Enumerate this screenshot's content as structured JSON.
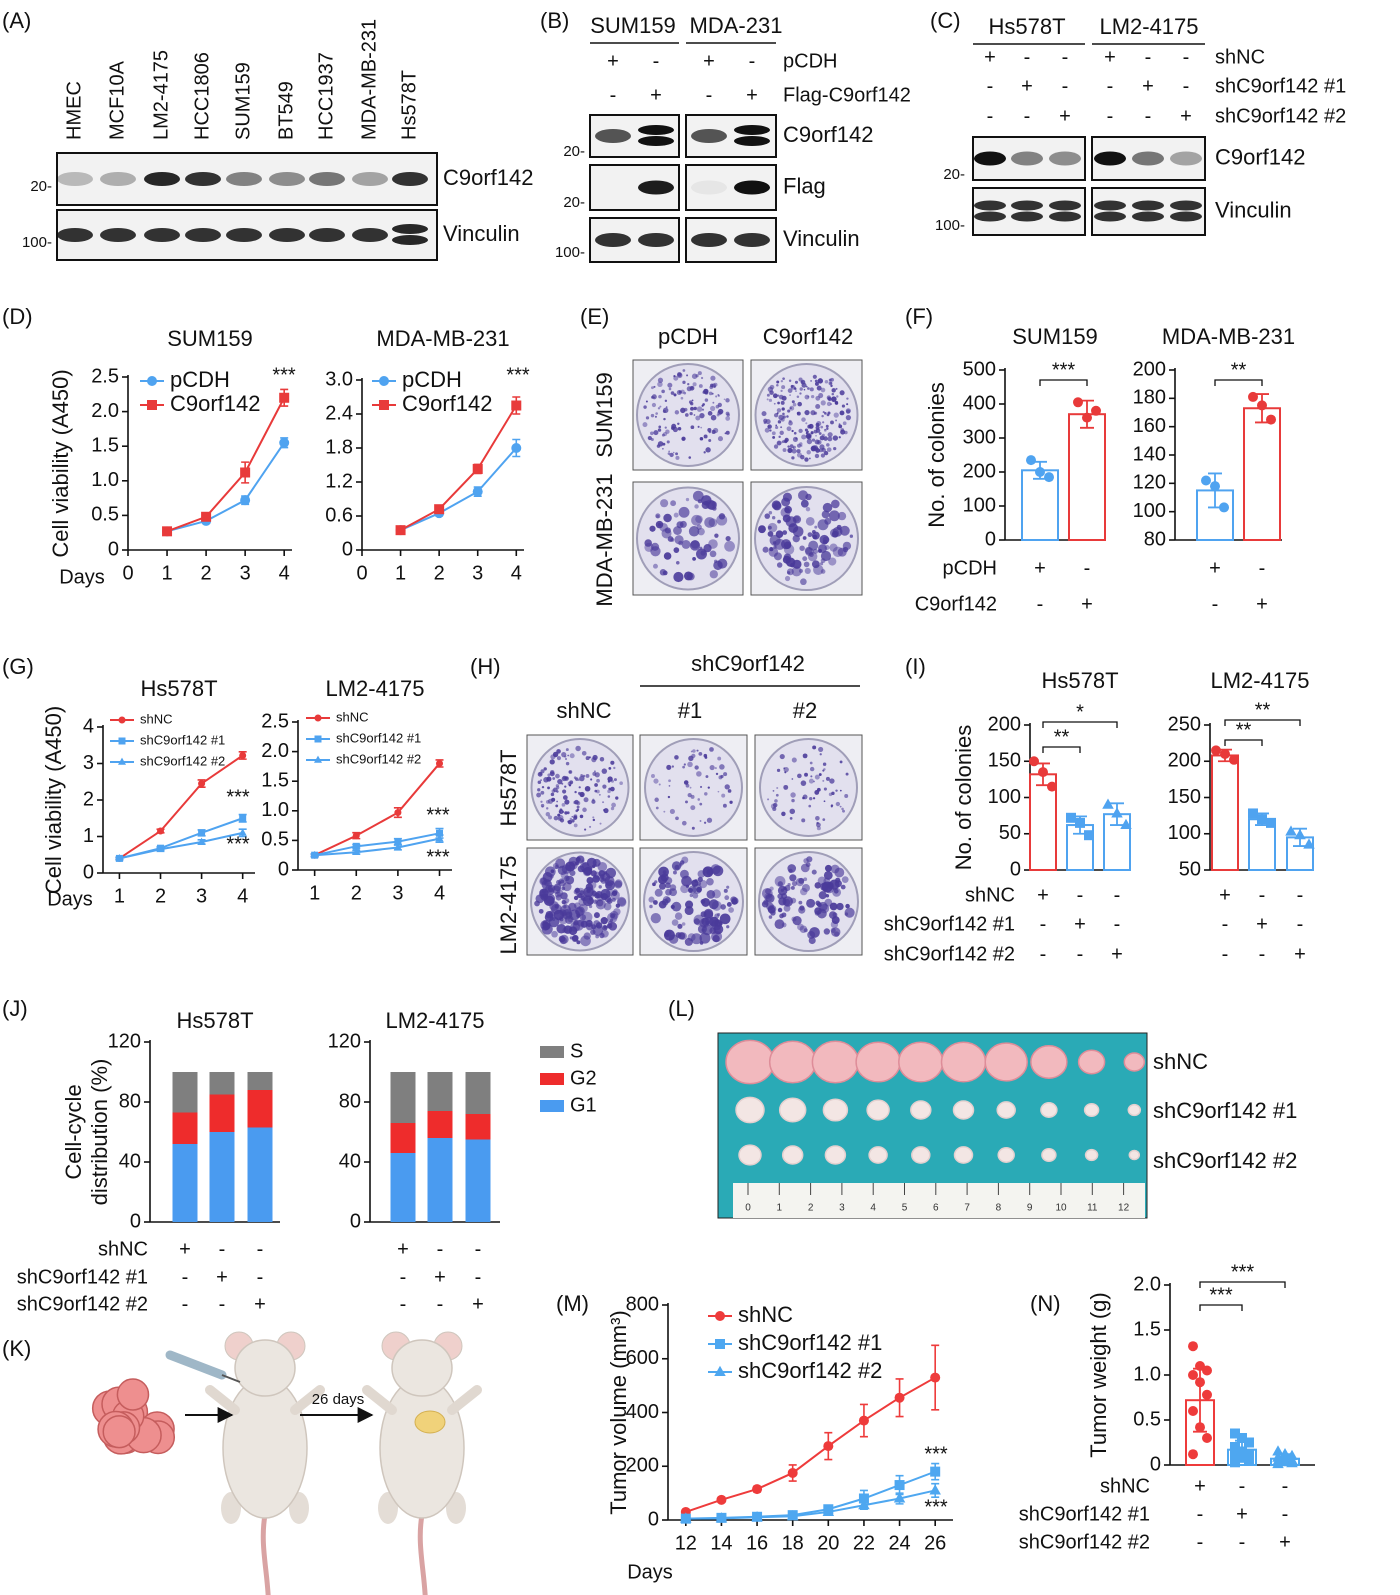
{
  "labels": {
    "panels": [
      "(A)",
      "(B)",
      "(C)",
      "(D)",
      "(E)",
      "(F)",
      "(G)",
      "(H)",
      "(I)",
      "(J)",
      "(K)",
      "(L)",
      "(M)",
      "(N)"
    ]
  },
  "blot_A": {
    "lanes": [
      "HMEC",
      "MCF10A",
      "LM2-4175",
      "HCC1806",
      "SUM159",
      "BT549",
      "HCC1937",
      "MDA-MB-231",
      "Hs578T"
    ],
    "bands": [
      "C9orf142",
      "Vinculin"
    ],
    "markers": [
      "20-",
      "100-"
    ]
  },
  "blot_B": {
    "groups": [
      "SUM159",
      "MDA-231"
    ],
    "rows": [
      {
        "name": "pCDH",
        "signs": [
          "+",
          "-",
          "+",
          "-"
        ]
      },
      {
        "name": "Flag-C9orf142",
        "signs": [
          "-",
          "+",
          "-",
          "+"
        ]
      }
    ],
    "bands": [
      "C9orf142",
      "Flag",
      "Vinculin"
    ],
    "markers": [
      "20-",
      "20-",
      "100-"
    ]
  },
  "blot_C": {
    "groups": [
      "Hs578T",
      "LM2-4175"
    ],
    "rows": [
      {
        "name": "shNC",
        "signs": [
          "+",
          "-",
          "-",
          "+",
          "-",
          "-"
        ]
      },
      {
        "name": "shC9orf142 #1",
        "signs": [
          "-",
          "+",
          "-",
          "-",
          "+",
          "-"
        ]
      },
      {
        "name": "shC9orf142 #2",
        "signs": [
          "-",
          "-",
          "+",
          "-",
          "-",
          "+"
        ]
      }
    ],
    "bands": [
      "C9orf142",
      "Vinculin"
    ],
    "markers": [
      "20-",
      "100-"
    ]
  },
  "colony_E": {
    "columns": [
      "pCDH",
      "C9orf142"
    ],
    "rows": [
      "SUM159",
      "MDA-MB-231"
    ]
  },
  "colony_H": {
    "header": "shC9orf142",
    "columns": [
      "shNC",
      "#1",
      "#2"
    ],
    "rows": [
      "Hs578T",
      "LM2-4175"
    ]
  },
  "schematic_K": {
    "label": "26 days"
  },
  "photo_L": {
    "rows": [
      "shNC",
      "shC9orf142 #1",
      "shC9orf142 #2"
    ],
    "ruler": [
      0,
      1,
      2,
      3,
      4,
      5,
      6,
      7,
      8,
      9,
      10,
      11,
      12
    ]
  },
  "chart_data": [
    {
      "type": "line",
      "title": "SUM159",
      "ylabel": "Cell viability (A450)",
      "xlabel": "Days",
      "x": [
        1,
        2,
        3,
        4
      ],
      "xlim": [
        0,
        4.2
      ],
      "xticks": [
        0,
        1,
        2,
        3,
        4
      ],
      "ylim": [
        0,
        2.5
      ],
      "yticks": [
        0,
        0.5,
        {
          "value": 1,
          "label": "1.0"
        },
        1.5,
        {
          "value": 2,
          "label": "2.0"
        },
        2.5
      ],
      "series": [
        {
          "name": "pCDH",
          "color": "#4fa3f0",
          "marker": "circle",
          "values": [
            0.27,
            0.42,
            0.72,
            1.55
          ],
          "errors": [
            0.02,
            0.03,
            0.06,
            0.07
          ]
        },
        {
          "name": "C9orf142",
          "color": "#e83a3a",
          "marker": "square",
          "values": [
            0.27,
            0.48,
            1.12,
            2.2
          ],
          "errors": [
            0.02,
            0.04,
            0.15,
            0.12
          ]
        }
      ],
      "annotations": [
        "***"
      ]
    },
    {
      "type": "line",
      "title": "MDA-MB-231",
      "x": [
        1,
        2,
        3,
        4
      ],
      "xlim": [
        0,
        4.2
      ],
      "xticks": [
        0,
        1,
        2,
        3,
        4
      ],
      "ylim": [
        0,
        3
      ],
      "yticks": [
        0,
        0.6,
        1.2,
        1.8,
        2.4,
        {
          "value": 3,
          "label": "3.0"
        }
      ],
      "series": [
        {
          "name": "pCDH",
          "color": "#4fa3f0",
          "marker": "circle",
          "values": [
            0.35,
            0.65,
            1.03,
            1.8
          ],
          "errors": [
            0.03,
            0.04,
            0.08,
            0.15
          ]
        },
        {
          "name": "C9orf142",
          "color": "#e83a3a",
          "marker": "square",
          "values": [
            0.35,
            0.72,
            1.43,
            2.55
          ],
          "errors": [
            0.03,
            0.05,
            0.08,
            0.15
          ]
        }
      ],
      "annotations": [
        "***"
      ]
    },
    {
      "type": "dotbar",
      "title": "SUM159",
      "ylabel": "No. of colonies",
      "ylim": [
        0,
        500
      ],
      "yticks": [
        0,
        100,
        200,
        300,
        400,
        500
      ],
      "colors": [
        "#4fa3f0",
        "#e83a3a"
      ],
      "markers": [
        "circle",
        "circle"
      ],
      "values": [
        205,
        370
      ],
      "errors": [
        25,
        40
      ],
      "points": [
        [
          235,
          200,
          185
        ],
        [
          405,
          360,
          380
        ]
      ],
      "annotations": [
        "***"
      ],
      "rows": [
        {
          "name": "pCDH",
          "signs": [
            "+",
            "-"
          ]
        },
        {
          "name": "C9orf142",
          "signs": [
            "-",
            "+"
          ]
        }
      ]
    },
    {
      "type": "dotbar",
      "title": "MDA-MB-231",
      "ylim": [
        80,
        200
      ],
      "yticks": [
        80,
        100,
        120,
        140,
        160,
        180,
        200
      ],
      "colors": [
        "#4fa3f0",
        "#e83a3a"
      ],
      "markers": [
        "circle",
        "circle"
      ],
      "values": [
        115,
        173
      ],
      "errors": [
        12,
        10
      ],
      "points": [
        [
          122,
          118,
          103
        ],
        [
          181,
          175,
          165
        ]
      ],
      "annotations": [
        "**"
      ],
      "rows": [
        {
          "signs": [
            "+",
            "-"
          ]
        },
        {
          "signs": [
            "-",
            "+"
          ]
        }
      ]
    },
    {
      "type": "line",
      "title": "Hs578T",
      "ylabel": "Cell viability (A450)",
      "xlabel": "Days",
      "x": [
        1,
        2,
        3,
        4
      ],
      "xlim": [
        0.6,
        4.3
      ],
      "xticks": [
        1,
        2,
        3,
        4
      ],
      "ylim": [
        0,
        4
      ],
      "yticks": [
        0,
        1,
        2,
        3,
        4
      ],
      "series": [
        {
          "name": "shNC",
          "color": "#e83a3a",
          "marker": "circle",
          "values": [
            0.4,
            1.15,
            2.45,
            3.22
          ],
          "errors": [
            0.03,
            0.05,
            0.1,
            0.1
          ]
        },
        {
          "name": "shC9orf142 #1",
          "color": "#4fa3f0",
          "marker": "square",
          "values": [
            0.4,
            0.68,
            1.1,
            1.5
          ],
          "errors": [
            0.03,
            0.04,
            0.08,
            0.1
          ]
        },
        {
          "name": "shC9orf142 #2",
          "color": "#4fa3f0",
          "marker": "triangle",
          "values": [
            0.4,
            0.65,
            0.85,
            1.1
          ],
          "errors": [
            0.03,
            0.04,
            0.06,
            0.1
          ]
        }
      ],
      "annotations": [
        "***",
        "***"
      ]
    },
    {
      "type": "line",
      "title": "LM2-4175",
      "x": [
        1,
        2,
        3,
        4
      ],
      "xlim": [
        0.6,
        4.3
      ],
      "xticks": [
        1,
        2,
        3,
        4
      ],
      "ylim": [
        0,
        2.5
      ],
      "yticks": [
        0,
        0.5,
        {
          "value": 1,
          "label": "1.0"
        },
        1.5,
        {
          "value": 2,
          "label": "2.0"
        },
        2.5
      ],
      "series": [
        {
          "name": "shNC",
          "color": "#e83a3a",
          "marker": "circle",
          "values": [
            0.25,
            0.58,
            0.97,
            1.8
          ],
          "errors": [
            0.02,
            0.05,
            0.08,
            0.06
          ]
        },
        {
          "name": "shC9orf142 #1",
          "color": "#4fa3f0",
          "marker": "square",
          "values": [
            0.25,
            0.4,
            0.48,
            0.62
          ],
          "errors": [
            0.02,
            0.03,
            0.05,
            0.08
          ]
        },
        {
          "name": "shC9orf142 #2",
          "color": "#4fa3f0",
          "marker": "triangle",
          "values": [
            0.25,
            0.3,
            0.38,
            0.53
          ],
          "errors": [
            0.02,
            0.03,
            0.04,
            0.06
          ]
        }
      ],
      "annotations": [
        "***",
        "***"
      ]
    },
    {
      "type": "dotbar",
      "title": "Hs578T",
      "ylabel": "No. of colonies",
      "ylim": [
        0,
        200
      ],
      "yticks": [
        0,
        50,
        100,
        150,
        200
      ],
      "colors": [
        "#e83a3a",
        "#4fa3f0",
        "#4fa3f0"
      ],
      "markers": [
        "circle",
        "square",
        "triangle"
      ],
      "values": [
        132,
        62,
        77
      ],
      "errors": [
        15,
        12,
        15
      ],
      "points": [
        [
          150,
          135,
          115
        ],
        [
          72,
          65,
          48
        ],
        [
          90,
          78,
          62
        ]
      ],
      "annotations": [
        "**",
        "*"
      ],
      "rows": [
        {
          "name": "shNC",
          "signs": [
            "+",
            "-",
            "-"
          ]
        },
        {
          "name": "shC9orf142 #1",
          "signs": [
            "-",
            "+",
            "-"
          ]
        },
        {
          "name": "shC9orf142 #2",
          "signs": [
            "-",
            "-",
            "+"
          ]
        }
      ]
    },
    {
      "type": "dotbar",
      "title": "LM2-4175",
      "ylim": [
        50,
        250
      ],
      "yticks": [
        50,
        100,
        150,
        200,
        250
      ],
      "colors": [
        "#e83a3a",
        "#4fa3f0",
        "#4fa3f0"
      ],
      "markers": [
        "circle",
        "square",
        "triangle"
      ],
      "values": [
        208,
        120,
        95
      ],
      "errors": [
        8,
        8,
        12
      ],
      "points": [
        [
          215,
          210,
          202
        ],
        [
          128,
          120,
          115
        ],
        [
          103,
          98,
          85
        ]
      ],
      "annotations": [
        "**",
        "**"
      ],
      "rows": [
        {
          "signs": [
            "+",
            "-",
            "-"
          ]
        },
        {
          "signs": [
            "-",
            "+",
            "-"
          ]
        },
        {
          "signs": [
            "-",
            "-",
            "+"
          ]
        }
      ]
    },
    {
      "type": "stacked",
      "title": "Hs578T",
      "ylabel": [
        "Cell-cycle",
        "distribution (%)"
      ],
      "ylim": [
        0,
        120
      ],
      "yticks": [
        0,
        40,
        80,
        120
      ],
      "series": [
        {
          "color": "#7f7f7f",
          "values": [
            27,
            15,
            12
          ]
        },
        {
          "color": "#ee2c2c",
          "values": [
            21,
            25,
            25
          ]
        },
        {
          "color": "#4a9bf0",
          "values": [
            52,
            60,
            63
          ]
        }
      ],
      "rows": [
        {
          "name": "shNC",
          "signs": [
            "+",
            "-",
            "-"
          ]
        },
        {
          "name": "shC9orf142 #1",
          "signs": [
            "-",
            "+",
            "-"
          ]
        },
        {
          "name": "shC9orf142 #2",
          "signs": [
            "-",
            "-",
            "+"
          ]
        }
      ]
    },
    {
      "type": "stacked",
      "title": "LM2-4175",
      "ylim": [
        0,
        120
      ],
      "yticks": [
        0,
        40,
        80,
        120
      ],
      "series": [
        {
          "name": "S",
          "color": "#7f7f7f",
          "values": [
            34,
            26,
            28
          ]
        },
        {
          "name": "G2",
          "color": "#ee2c2c",
          "values": [
            20,
            18,
            17
          ]
        },
        {
          "name": "G1",
          "color": "#4a9bf0",
          "values": [
            46,
            56,
            55
          ]
        }
      ],
      "rows": [
        {
          "signs": [
            "+",
            "-",
            "-"
          ]
        },
        {
          "signs": [
            "-",
            "+",
            "-"
          ]
        },
        {
          "signs": [
            "-",
            "-",
            "+"
          ]
        }
      ]
    },
    {
      "type": "line",
      "ylabel": "Tumor volume (mm³)",
      "xlabel": "Days",
      "x": [
        12,
        14,
        16,
        18,
        20,
        22,
        24,
        26
      ],
      "xlim": [
        11,
        27
      ],
      "xticks": [
        12,
        14,
        16,
        18,
        20,
        22,
        24,
        26
      ],
      "ylim": [
        0,
        800
      ],
      "yticks": [
        0,
        200,
        400,
        600,
        800
      ],
      "series": [
        {
          "name": "shNC",
          "color": "#ee3b3b",
          "marker": "circle",
          "values": [
            30,
            75,
            115,
            175,
            275,
            370,
            455,
            530
          ],
          "errors": [
            5,
            8,
            10,
            30,
            50,
            60,
            70,
            120
          ]
        },
        {
          "name": "shC9orf142 #1",
          "color": "#4ea7f0",
          "marker": "square",
          "values": [
            5,
            8,
            12,
            18,
            40,
            80,
            130,
            180
          ],
          "errors": [
            2,
            3,
            4,
            6,
            10,
            30,
            35,
            30
          ]
        },
        {
          "name": "shC9orf142 #2",
          "color": "#4ea7f0",
          "marker": "triangle",
          "values": [
            5,
            6,
            10,
            14,
            30,
            55,
            80,
            110
          ],
          "errors": [
            2,
            2,
            3,
            5,
            8,
            15,
            20,
            25
          ]
        }
      ],
      "annotations": [
        "***",
        "***"
      ]
    },
    {
      "type": "dotbar",
      "ylabel": "Tumor weight (g)",
      "ylim": [
        0,
        2
      ],
      "yticks": [
        0,
        0.5,
        {
          "value": 1,
          "label": "1.0"
        },
        1.5,
        {
          "value": 2,
          "label": "2.0"
        }
      ],
      "colors": [
        "#ee3b3b",
        "#4ea7f0",
        "#4ea7f0"
      ],
      "markers": [
        "circle",
        "square",
        "triangle"
      ],
      "values": [
        0.72,
        0.17,
        0.07
      ],
      "errors": [
        0.35,
        0.1,
        0.05
      ],
      "points": [
        [
          1.32,
          1.1,
          1.05,
          1.0,
          0.92,
          0.78,
          0.6,
          0.42,
          0.3,
          0.12
        ],
        [
          0.35,
          0.3,
          0.25,
          0.2,
          0.15,
          0.12,
          0.1,
          0.08,
          0.05,
          0.03
        ],
        [
          0.15,
          0.12,
          0.1,
          0.08,
          0.06,
          0.05,
          0.04,
          0.03,
          0.02,
          0.01
        ]
      ],
      "annotations": [
        "***",
        "***"
      ],
      "rows": [
        {
          "name": "shNC",
          "signs": [
            "+",
            "-",
            "-"
          ]
        },
        {
          "name": "shC9orf142 #1",
          "signs": [
            "-",
            "+",
            "-"
          ]
        },
        {
          "name": "shC9orf142 #2",
          "signs": [
            "-",
            "-",
            "+"
          ]
        }
      ]
    }
  ]
}
